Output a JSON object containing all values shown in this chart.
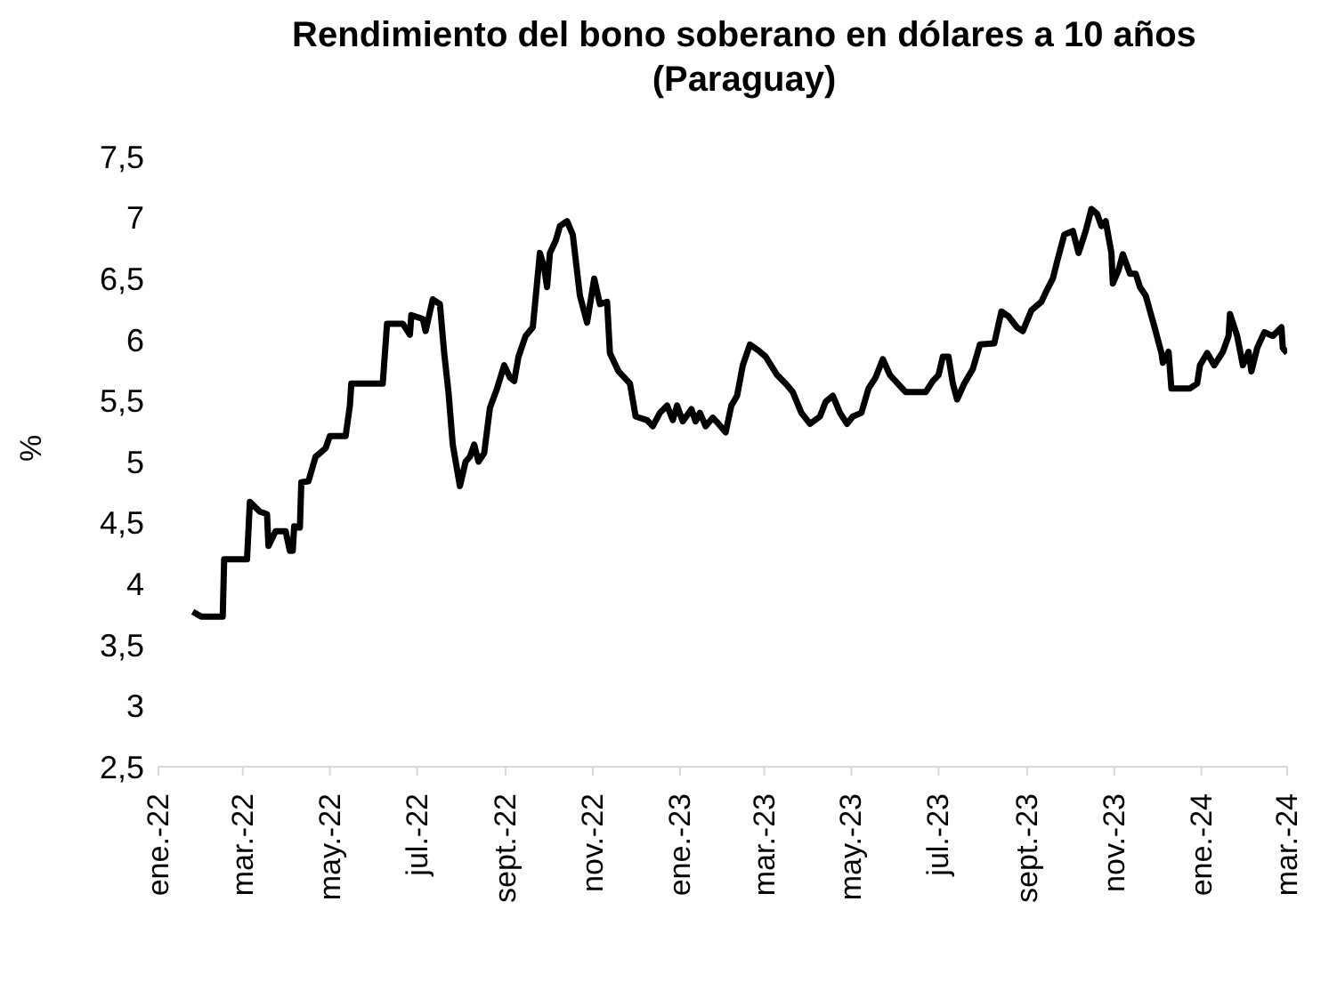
{
  "chart_data": {
    "type": "line",
    "title": "Rendimiento del bono soberano en dólares a 10 años\n(Paraguay)",
    "ylabel": "%",
    "x": [
      "2022-01-25",
      "2022-01-31",
      "2022-02-15",
      "2022-02-16",
      "2022-03-04",
      "2022-03-06",
      "2022-03-13",
      "2022-03-18",
      "2022-03-19",
      "2022-03-24",
      "2022-03-31",
      "2022-04-03",
      "2022-04-05",
      "2022-04-06",
      "2022-04-10",
      "2022-04-11",
      "2022-04-16",
      "2022-04-21",
      "2022-04-28",
      "2022-05-01",
      "2022-05-12",
      "2022-05-15",
      "2022-05-16",
      "2022-06-07",
      "2022-06-10",
      "2022-06-21",
      "2022-06-26",
      "2022-06-27",
      "2022-07-05",
      "2022-07-07",
      "2022-07-12",
      "2022-07-17",
      "2022-07-20",
      "2022-07-23",
      "2022-07-26",
      "2022-07-31",
      "2022-08-04",
      "2022-08-07",
      "2022-08-10",
      "2022-08-13",
      "2022-08-17",
      "2022-08-21",
      "2022-08-26",
      "2022-08-31",
      "2022-09-04",
      "2022-09-07",
      "2022-09-10",
      "2022-09-15",
      "2022-09-20",
      "2022-09-25",
      "2022-09-28",
      "2022-09-30",
      "2022-10-02",
      "2022-10-06",
      "2022-10-09",
      "2022-10-14",
      "2022-10-18",
      "2022-10-23",
      "2022-10-28",
      "2022-11-02",
      "2022-11-06",
      "2022-11-11",
      "2022-11-13",
      "2022-11-19",
      "2022-11-27",
      "2022-12-01",
      "2022-12-09",
      "2022-12-13",
      "2022-12-18",
      "2022-12-23",
      "2022-12-27",
      "2022-12-30",
      "2023-01-03",
      "2023-01-09",
      "2023-01-12",
      "2023-01-15",
      "2023-01-19",
      "2023-01-24",
      "2023-01-28",
      "2023-02-02",
      "2023-02-06",
      "2023-02-10",
      "2023-02-14",
      "2023-02-19",
      "2023-02-25",
      "2023-03-02",
      "2023-03-10",
      "2023-03-16",
      "2023-03-21",
      "2023-03-27",
      "2023-04-02",
      "2023-04-09",
      "2023-04-13",
      "2023-04-18",
      "2023-04-23",
      "2023-04-28",
      "2023-05-02",
      "2023-05-08",
      "2023-05-13",
      "2023-05-18",
      "2023-05-23",
      "2023-05-28",
      "2023-06-08",
      "2023-06-22",
      "2023-06-27",
      "2023-07-01",
      "2023-07-04",
      "2023-07-08",
      "2023-07-11",
      "2023-07-14",
      "2023-07-19",
      "2023-07-25",
      "2023-07-30",
      "2023-08-09",
      "2023-08-14",
      "2023-08-19",
      "2023-08-25",
      "2023-08-29",
      "2023-09-04",
      "2023-09-11",
      "2023-09-15",
      "2023-09-19",
      "2023-09-22",
      "2023-09-27",
      "2023-10-03",
      "2023-10-07",
      "2023-10-12",
      "2023-10-16",
      "2023-10-20",
      "2023-10-23",
      "2023-10-26",
      "2023-10-30",
      "2023-10-31",
      "2023-11-04",
      "2023-11-07",
      "2023-11-12",
      "2023-11-16",
      "2023-11-19",
      "2023-11-23",
      "2023-11-29",
      "2023-12-04",
      "2023-12-05",
      "2023-12-09",
      "2023-12-11",
      "2023-12-24",
      "2023-12-29",
      "2023-12-31",
      "2024-01-05",
      "2024-01-10",
      "2024-01-16",
      "2024-01-20",
      "2024-01-21",
      "2024-01-26",
      "2024-01-30",
      "2024-02-03",
      "2024-02-05",
      "2024-02-09",
      "2024-02-14",
      "2024-02-20",
      "2024-02-26",
      "2024-02-27",
      "2024-03-01"
    ],
    "series": [
      {
        "color": "#000000",
        "values": [
          3.77,
          3.73,
          3.73,
          4.2,
          4.2,
          4.67,
          4.59,
          4.57,
          4.31,
          4.43,
          4.43,
          4.27,
          4.27,
          4.47,
          4.46,
          4.83,
          4.84,
          5.04,
          5.11,
          5.21,
          5.21,
          5.46,
          5.64,
          5.64,
          6.13,
          6.13,
          6.04,
          6.2,
          6.17,
          6.07,
          6.33,
          6.29,
          5.89,
          5.57,
          5.14,
          4.8,
          5.0,
          5.04,
          5.14,
          5.0,
          5.07,
          5.44,
          5.6,
          5.79,
          5.69,
          5.66,
          5.86,
          6.03,
          6.1,
          6.71,
          6.59,
          6.43,
          6.71,
          6.81,
          6.93,
          6.97,
          6.86,
          6.36,
          6.14,
          6.5,
          6.29,
          6.31,
          5.89,
          5.74,
          5.64,
          5.37,
          5.34,
          5.29,
          5.4,
          5.46,
          5.34,
          5.46,
          5.33,
          5.43,
          5.33,
          5.4,
          5.29,
          5.36,
          5.31,
          5.24,
          5.46,
          5.54,
          5.79,
          5.96,
          5.91,
          5.86,
          5.71,
          5.64,
          5.57,
          5.4,
          5.31,
          5.37,
          5.49,
          5.54,
          5.4,
          5.31,
          5.37,
          5.4,
          5.6,
          5.69,
          5.84,
          5.71,
          5.57,
          5.57,
          5.66,
          5.71,
          5.86,
          5.86,
          5.64,
          5.51,
          5.64,
          5.76,
          5.96,
          5.97,
          6.23,
          6.19,
          6.1,
          6.07,
          6.24,
          6.31,
          6.41,
          6.5,
          6.64,
          6.86,
          6.89,
          6.71,
          6.89,
          7.07,
          7.03,
          6.93,
          6.97,
          6.71,
          6.46,
          6.57,
          6.7,
          6.54,
          6.54,
          6.43,
          6.36,
          6.11,
          5.89,
          5.81,
          5.9,
          5.6,
          5.6,
          5.64,
          5.79,
          5.89,
          5.79,
          5.9,
          6.03,
          6.21,
          6.03,
          5.79,
          5.9,
          5.74,
          5.93,
          6.06,
          6.03,
          6.1,
          5.93,
          5.89
        ]
      }
    ],
    "xlim": [
      "2022-01-01",
      "2024-03-01"
    ],
    "xticks": [
      {
        "value": "2022-01-01",
        "label": "ene.-22"
      },
      {
        "value": "2022-03-01",
        "label": "mar.-22"
      },
      {
        "value": "2022-05-01",
        "label": "may.-22"
      },
      {
        "value": "2022-07-01",
        "label": "jul.-22"
      },
      {
        "value": "2022-09-01",
        "label": "sept.-22"
      },
      {
        "value": "2022-11-01",
        "label": "nov.-22"
      },
      {
        "value": "2023-01-01",
        "label": "ene.-23"
      },
      {
        "value": "2023-03-01",
        "label": "mar.-23"
      },
      {
        "value": "2023-05-01",
        "label": "may.-23"
      },
      {
        "value": "2023-07-01",
        "label": "jul.-23"
      },
      {
        "value": "2023-09-01",
        "label": "sept.-23"
      },
      {
        "value": "2023-11-01",
        "label": "nov.-23"
      },
      {
        "value": "2024-01-01",
        "label": "ene.-24"
      },
      {
        "value": "2024-03-01",
        "label": "mar.-24"
      }
    ],
    "ylim": [
      2.5,
      7.5
    ],
    "yticks": [
      {
        "value": 2.5,
        "label": "2,5"
      },
      3,
      {
        "value": 3.5,
        "label": "3,5"
      },
      4,
      {
        "value": 4.5,
        "label": "4,5"
      },
      5,
      {
        "value": 5.5,
        "label": "5,5"
      },
      6,
      {
        "value": 6.5,
        "label": "6,5"
      },
      7,
      {
        "value": 7.5,
        "label": "7,5"
      }
    ],
    "grid": false,
    "legend": false,
    "marker": "none",
    "line_style": "solid"
  }
}
